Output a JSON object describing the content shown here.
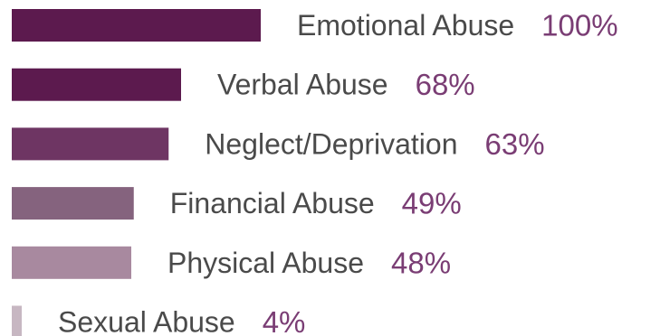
{
  "chart_data": {
    "type": "bar",
    "orientation": "horizontal",
    "categories": [
      "Emotional Abuse",
      "Verbal Abuse",
      "Neglect/Deprivation",
      "Financial Abuse",
      "Physical Abuse",
      "Sexual Abuse"
    ],
    "values": [
      100,
      68,
      63,
      49,
      48,
      4
    ],
    "value_labels": [
      "100%",
      "68%",
      "63%",
      "49%",
      "48%",
      "4%"
    ],
    "bar_colors": [
      "#5c1a4e",
      "#5c1a4e",
      "#6e3563",
      "#85637e",
      "#a8899f",
      "#c7b7c2"
    ],
    "label_color": "#4a4a4a",
    "value_color": "#7a3d74",
    "grid": false,
    "legend": "none"
  }
}
